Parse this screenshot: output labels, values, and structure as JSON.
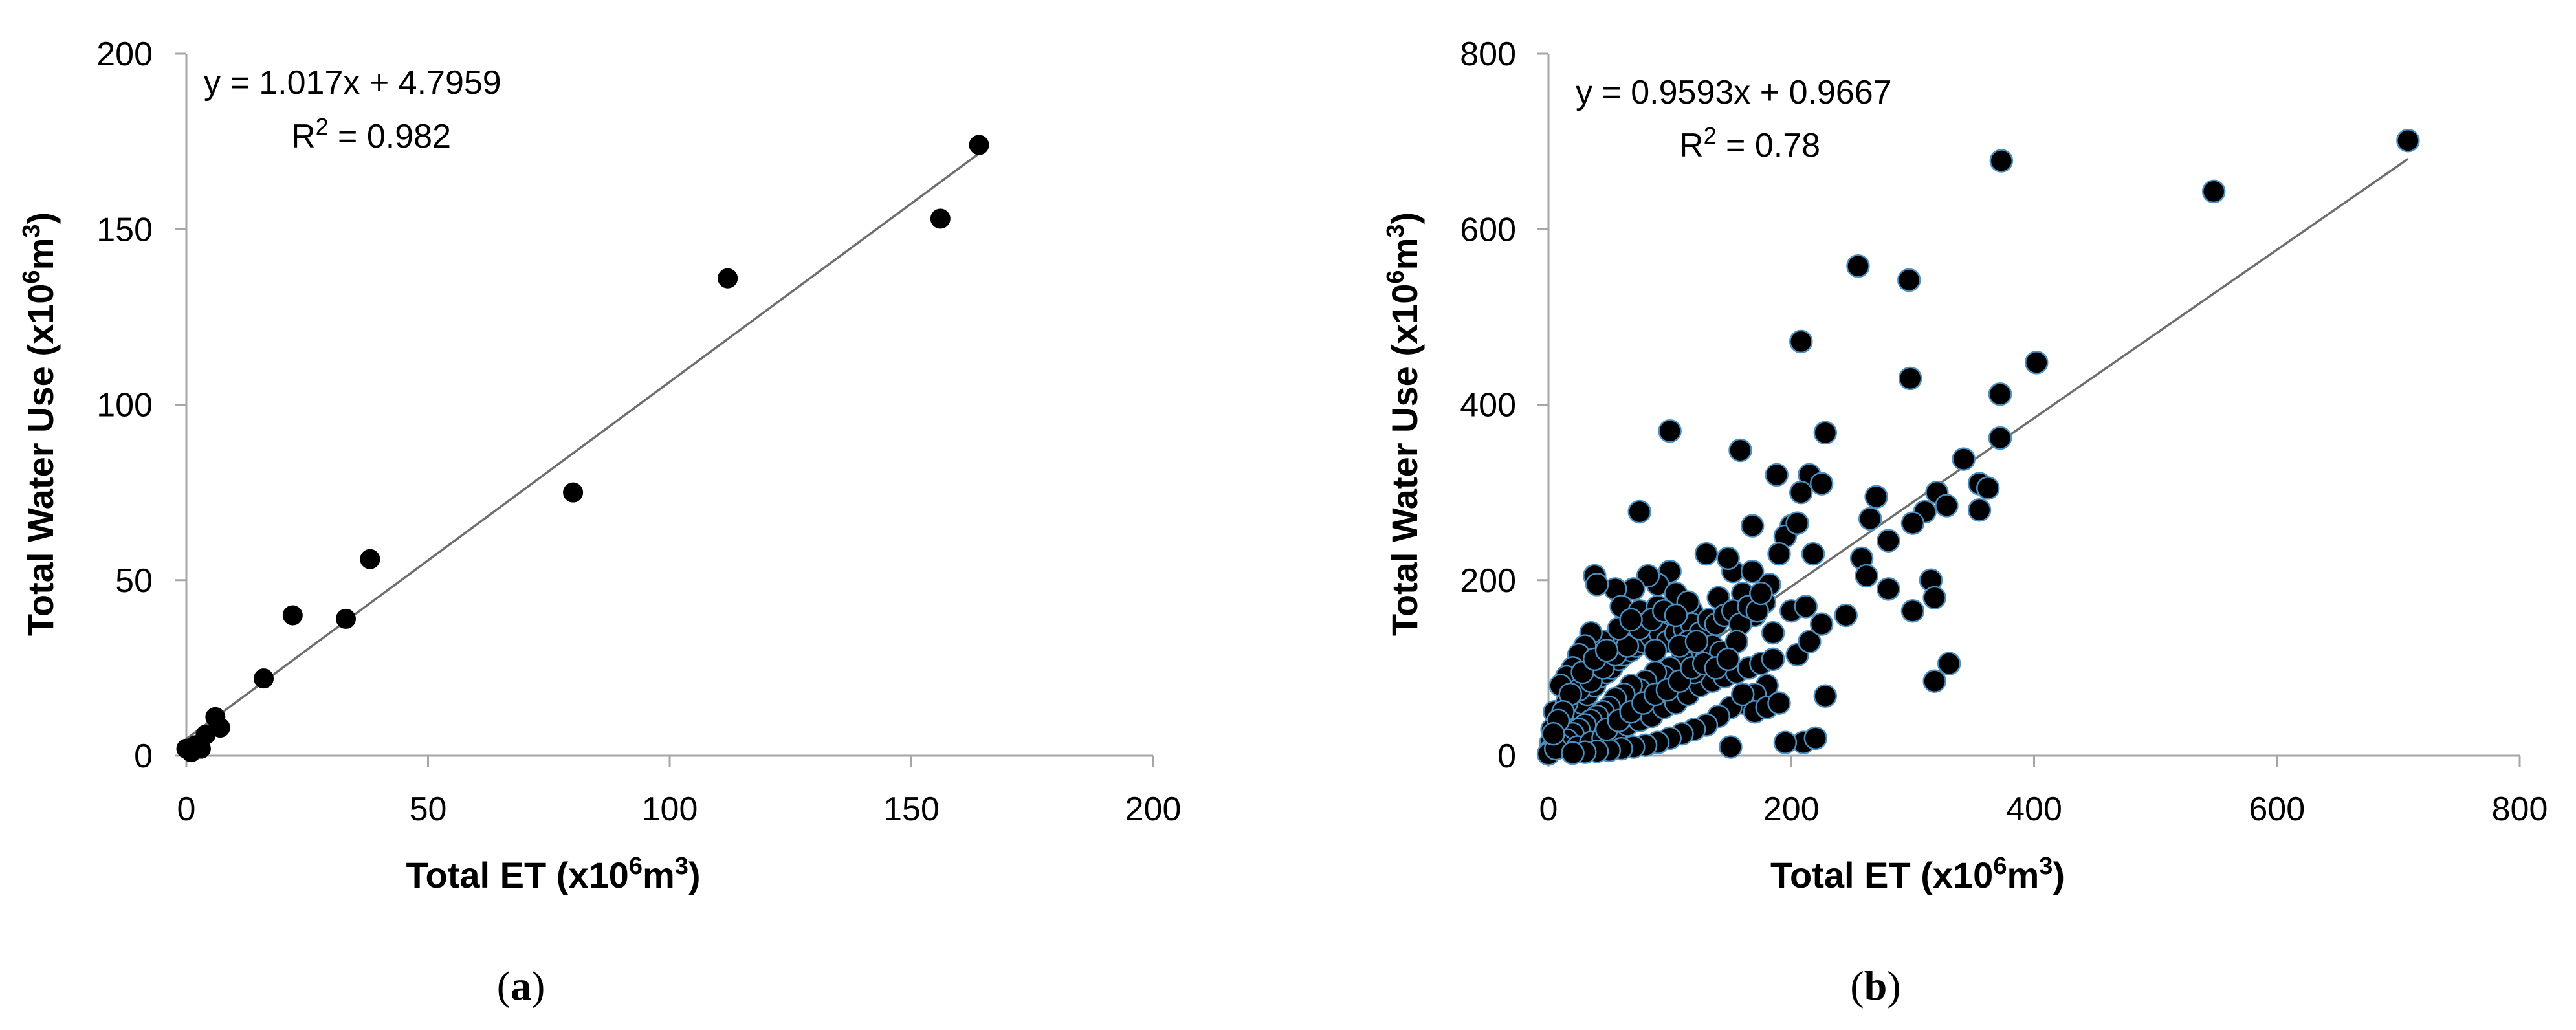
{
  "chart_data": [
    {
      "type": "scatter",
      "panel_label": "a",
      "xlabel": {
        "prefix": "Total ET (x10",
        "sup1": "6",
        "mid": "m",
        "sup2": "3",
        "suffix": ")"
      },
      "ylabel": {
        "prefix": "Total Water Use (x10",
        "sup1": "6",
        "mid": "m",
        "sup2": "3",
        "suffix": ")"
      },
      "xlim": [
        0,
        200
      ],
      "ylim": [
        0,
        200
      ],
      "xticks": [
        0,
        50,
        100,
        150,
        200
      ],
      "yticks": [
        0,
        50,
        100,
        150,
        200
      ],
      "equation": "y = 1.017x + 4.7959",
      "r2": {
        "prefix": "R",
        "sup": "2",
        "suffix": " = 0.982"
      },
      "trendline": {
        "slope": 1.017,
        "intercept": 4.7959,
        "x_range": [
          0,
          164
        ]
      },
      "marker_color": "#000000",
      "points": [
        [
          0,
          2
        ],
        [
          1,
          1
        ],
        [
          2,
          3
        ],
        [
          3,
          2
        ],
        [
          4,
          6
        ],
        [
          6,
          11
        ],
        [
          7,
          8
        ],
        [
          16,
          22
        ],
        [
          22,
          40
        ],
        [
          33,
          39
        ],
        [
          38,
          56
        ],
        [
          80,
          75
        ],
        [
          112,
          136
        ],
        [
          156,
          153
        ],
        [
          164,
          174
        ]
      ]
    },
    {
      "type": "scatter",
      "panel_label": "b",
      "xlabel": {
        "prefix": "Total ET (x10",
        "sup1": "6",
        "mid": "m",
        "sup2": "3",
        "suffix": ")"
      },
      "ylabel": {
        "prefix": "Total Water Use (x10",
        "sup1": "6",
        "mid": "m",
        "sup2": "3",
        "suffix": ")"
      },
      "xlim": [
        0,
        800
      ],
      "ylim": [
        0,
        800
      ],
      "xticks": [
        0,
        200,
        400,
        600,
        800
      ],
      "yticks": [
        0,
        200,
        400,
        600,
        800
      ],
      "equation": "y = 0.9593x + 0.9667",
      "r2": {
        "prefix": "R",
        "sup": "2",
        "suffix": " = 0.78"
      },
      "trendline": {
        "slope": 0.9593,
        "intercept": 0.9667,
        "x_range": [
          0,
          708
        ]
      },
      "marker_color": "#000000",
      "marker_edge_color": "#4a90c2",
      "points": [
        [
          708,
          701
        ],
        [
          548,
          643
        ],
        [
          373,
          678
        ],
        [
          255,
          558
        ],
        [
          297,
          542
        ],
        [
          208,
          472
        ],
        [
          402,
          448
        ],
        [
          372,
          412
        ],
        [
          298,
          430
        ],
        [
          100,
          370
        ],
        [
          228,
          368
        ],
        [
          372,
          362
        ],
        [
          158,
          348
        ],
        [
          342,
          338
        ],
        [
          355,
          310
        ],
        [
          362,
          305
        ],
        [
          270,
          295
        ],
        [
          320,
          300
        ],
        [
          215,
          320
        ],
        [
          188,
          320
        ],
        [
          208,
          300
        ],
        [
          225,
          310
        ],
        [
          310,
          278
        ],
        [
          328,
          285
        ],
        [
          265,
          270
        ],
        [
          300,
          265
        ],
        [
          355,
          280
        ],
        [
          75,
          278
        ],
        [
          168,
          262
        ],
        [
          200,
          262
        ],
        [
          195,
          250
        ],
        [
          280,
          245
        ],
        [
          258,
          225
        ],
        [
          218,
          230
        ],
        [
          315,
          200
        ],
        [
          318,
          180
        ],
        [
          280,
          190
        ],
        [
          262,
          205
        ],
        [
          300,
          165
        ],
        [
          245,
          160
        ],
        [
          330,
          105
        ],
        [
          318,
          85
        ],
        [
          228,
          68
        ],
        [
          210,
          15
        ],
        [
          220,
          20
        ],
        [
          195,
          15
        ],
        [
          150,
          10
        ],
        [
          152,
          210
        ],
        [
          130,
          230
        ],
        [
          148,
          225
        ],
        [
          168,
          210
        ],
        [
          182,
          195
        ],
        [
          178,
          175
        ],
        [
          160,
          185
        ],
        [
          140,
          180
        ],
        [
          118,
          165
        ],
        [
          170,
          160
        ],
        [
          185,
          140
        ],
        [
          200,
          165
        ],
        [
          212,
          170
        ],
        [
          100,
          210
        ],
        [
          90,
          195
        ],
        [
          82,
          205
        ],
        [
          70,
          190
        ],
        [
          55,
          190
        ],
        [
          38,
          205
        ],
        [
          40,
          195
        ],
        [
          60,
          170
        ],
        [
          75,
          165
        ],
        [
          90,
          170
        ],
        [
          105,
          185
        ],
        [
          115,
          175
        ],
        [
          95,
          150
        ],
        [
          80,
          150
        ],
        [
          65,
          140
        ],
        [
          55,
          135
        ],
        [
          45,
          130
        ],
        [
          35,
          140
        ],
        [
          30,
          125
        ],
        [
          25,
          115
        ],
        [
          20,
          100
        ],
        [
          15,
          90
        ],
        [
          10,
          80
        ],
        [
          5,
          50
        ],
        [
          3,
          30
        ],
        [
          2,
          15
        ],
        [
          1,
          5
        ],
        [
          0,
          2
        ],
        [
          8,
          20
        ],
        [
          12,
          35
        ],
        [
          18,
          45
        ],
        [
          22,
          55
        ],
        [
          28,
          60
        ],
        [
          32,
          70
        ],
        [
          38,
          80
        ],
        [
          42,
          90
        ],
        [
          48,
          95
        ],
        [
          52,
          100
        ],
        [
          58,
          110
        ],
        [
          62,
          115
        ],
        [
          68,
          120
        ],
        [
          72,
          125
        ],
        [
          78,
          130
        ],
        [
          85,
          135
        ],
        [
          92,
          140
        ],
        [
          98,
          130
        ],
        [
          105,
          140
        ],
        [
          112,
          145
        ],
        [
          118,
          150
        ],
        [
          125,
          140
        ],
        [
          132,
          155
        ],
        [
          138,
          150
        ],
        [
          145,
          160
        ],
        [
          152,
          165
        ],
        [
          158,
          150
        ],
        [
          165,
          170
        ],
        [
          172,
          165
        ],
        [
          125,
          120
        ],
        [
          130,
          110
        ],
        [
          110,
          110
        ],
        [
          100,
          100
        ],
        [
          95,
          90
        ],
        [
          88,
          95
        ],
        [
          80,
          85
        ],
        [
          75,
          75
        ],
        [
          68,
          80
        ],
        [
          62,
          70
        ],
        [
          55,
          65
        ],
        [
          50,
          55
        ],
        [
          45,
          50
        ],
        [
          40,
          45
        ],
        [
          35,
          40
        ],
        [
          30,
          35
        ],
        [
          25,
          30
        ],
        [
          20,
          25
        ],
        [
          15,
          18
        ],
        [
          10,
          12
        ],
        [
          6,
          8
        ],
        [
          24,
          10
        ],
        [
          35,
          15
        ],
        [
          45,
          20
        ],
        [
          55,
          25
        ],
        [
          65,
          35
        ],
        [
          75,
          40
        ],
        [
          85,
          45
        ],
        [
          95,
          55
        ],
        [
          105,
          60
        ],
        [
          115,
          70
        ],
        [
          125,
          80
        ],
        [
          135,
          85
        ],
        [
          145,
          90
        ],
        [
          155,
          95
        ],
        [
          165,
          100
        ],
        [
          175,
          105
        ],
        [
          185,
          110
        ],
        [
          180,
          80
        ],
        [
          170,
          70
        ],
        [
          160,
          60
        ],
        [
          150,
          55
        ],
        [
          140,
          45
        ],
        [
          130,
          35
        ],
        [
          120,
          30
        ],
        [
          110,
          25
        ],
        [
          100,
          20
        ],
        [
          90,
          15
        ],
        [
          80,
          12
        ],
        [
          70,
          10
        ],
        [
          60,
          8
        ],
        [
          50,
          6
        ],
        [
          40,
          5
        ],
        [
          30,
          4
        ],
        [
          20,
          3
        ],
        [
          15,
          60
        ],
        [
          25,
          75
        ],
        [
          35,
          85
        ],
        [
          45,
          100
        ],
        [
          55,
          115
        ],
        [
          65,
          125
        ],
        [
          75,
          145
        ],
        [
          85,
          155
        ],
        [
          95,
          165
        ],
        [
          105,
          160
        ],
        [
          115,
          130
        ],
        [
          120,
          95
        ],
        [
          135,
          125
        ],
        [
          142,
          118
        ],
        [
          155,
          130
        ],
        [
          175,
          185
        ],
        [
          190,
          230
        ],
        [
          205,
          265
        ],
        [
          160,
          70
        ],
        [
          170,
          50
        ],
        [
          180,
          55
        ],
        [
          190,
          60
        ],
        [
          205,
          115
        ],
        [
          215,
          130
        ],
        [
          225,
          150
        ],
        [
          18,
          70
        ],
        [
          28,
          95
        ],
        [
          38,
          110
        ],
        [
          48,
          120
        ],
        [
          58,
          145
        ],
        [
          68,
          155
        ],
        [
          12,
          50
        ],
        [
          8,
          40
        ],
        [
          4,
          25
        ],
        [
          48,
          30
        ],
        [
          58,
          40
        ],
        [
          68,
          50
        ],
        [
          78,
          60
        ],
        [
          88,
          70
        ],
        [
          98,
          75
        ],
        [
          108,
          85
        ],
        [
          118,
          100
        ],
        [
          128,
          105
        ],
        [
          138,
          100
        ],
        [
          148,
          110
        ],
        [
          88,
          120
        ],
        [
          108,
          125
        ],
        [
          122,
          130
        ]
      ]
    }
  ]
}
